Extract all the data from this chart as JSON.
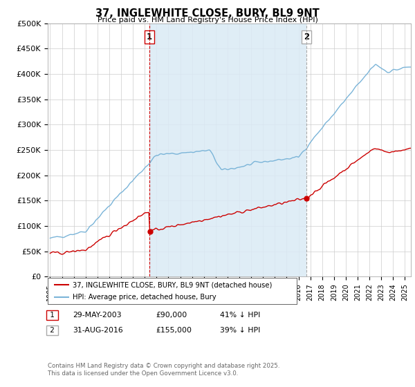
{
  "title": "37, INGLEWHITE CLOSE, BURY, BL9 9NT",
  "subtitle": "Price paid vs. HM Land Registry's House Price Index (HPI)",
  "ylabel_ticks": [
    "£0",
    "£50K",
    "£100K",
    "£150K",
    "£200K",
    "£250K",
    "£300K",
    "£350K",
    "£400K",
    "£450K",
    "£500K"
  ],
  "ytick_values": [
    0,
    50000,
    100000,
    150000,
    200000,
    250000,
    300000,
    350000,
    400000,
    450000,
    500000
  ],
  "ylim": [
    0,
    500000
  ],
  "xlim_start": 1994.8,
  "xlim_end": 2025.5,
  "purchase1_date": 2003.41,
  "purchase1_price": 90000,
  "purchase1_label": "1",
  "purchase2_date": 2016.66,
  "purchase2_price": 155000,
  "purchase2_label": "2",
  "hpi_color": "#7ab4d8",
  "hpi_fill_color": "#daeaf5",
  "price_color": "#cc0000",
  "vline1_color": "#cc0000",
  "vline2_color": "#aaaaaa",
  "background_color": "#ffffff",
  "grid_color": "#cccccc",
  "legend_entry1": "37, INGLEWHITE CLOSE, BURY, BL9 9NT (detached house)",
  "legend_entry2": "HPI: Average price, detached house, Bury",
  "footer": "Contains HM Land Registry data © Crown copyright and database right 2025.\nThis data is licensed under the Open Government Licence v3.0."
}
